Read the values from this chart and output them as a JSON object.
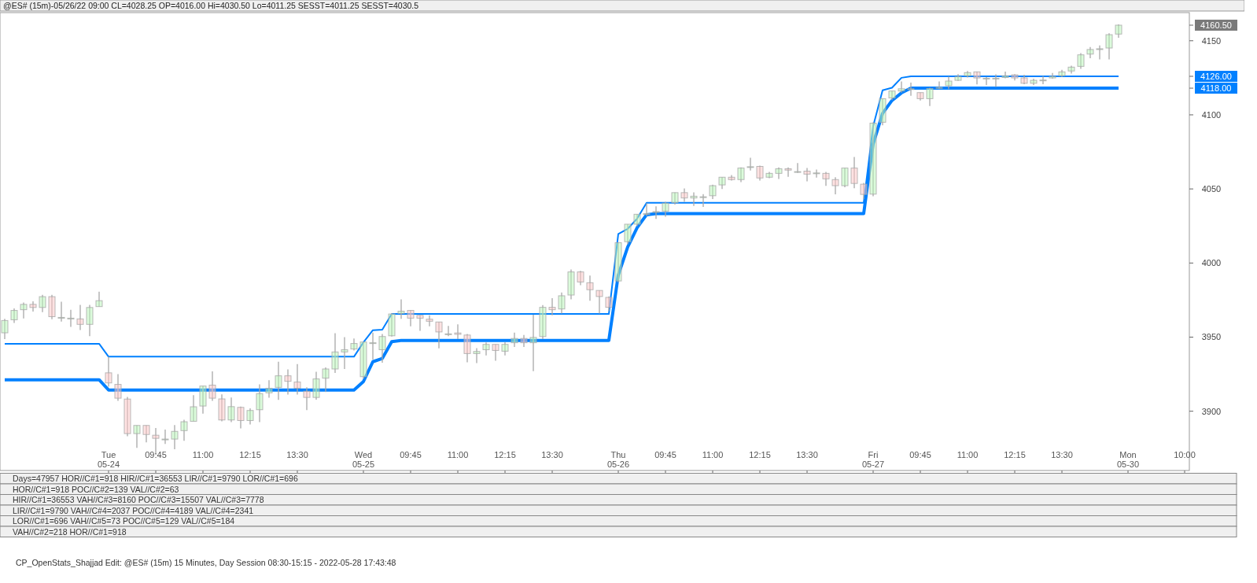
{
  "chart_data": {
    "type": "candlestick",
    "title": "@ES# (15m)-05/26/22 09:00 CL=4028.25 OP=4016.00 Hi=4030.50 Lo=4011.25 SESST=4011.25 SESST=4030.5",
    "categories": [
      null,
      null,
      null,
      null,
      null,
      null,
      null,
      null,
      null,
      null,
      null,
      "Tue 05-24",
      null,
      null,
      null,
      null,
      "09:45",
      null,
      null,
      null,
      null,
      "11:00",
      null,
      null,
      null,
      null,
      "12:15",
      null,
      null,
      null,
      null,
      "13:30",
      null,
      null,
      null,
      null,
      null,
      null,
      "Wed 05-25",
      null,
      null,
      null,
      null,
      "09:45",
      null,
      null,
      null,
      null,
      "11:00",
      null,
      null,
      null,
      null,
      "12:15",
      null,
      null,
      null,
      null,
      "13:30",
      null,
      null,
      null,
      null,
      null,
      null,
      "Thu 05-26",
      null,
      null,
      null,
      null,
      "09:45",
      null,
      null,
      null,
      null,
      "11:00",
      null,
      null,
      null,
      null,
      "12:15",
      null,
      null,
      null,
      null,
      "13:30",
      null,
      null,
      null,
      null,
      null,
      null,
      "Fri 05-27",
      null,
      null,
      null,
      null,
      "09:45",
      null,
      null,
      null,
      null,
      "11:00",
      null,
      null,
      null,
      null,
      "12:15",
      null,
      null,
      null,
      null,
      "13:30",
      null,
      null,
      null,
      null,
      null,
      null,
      "Mon 05-30",
      null,
      null,
      null,
      null,
      null,
      "10:00"
    ],
    "ohlc": [
      [
        3952.9,
        3962.4,
        3948.6,
        3961.2
      ],
      [
        3961.7,
        3969.4,
        3959.5,
        3968.0
      ],
      [
        3968.5,
        3973.3,
        3962.6,
        3972.1
      ],
      [
        3972.1,
        3974.2,
        3967.3,
        3970.0
      ],
      [
        3970.0,
        3978.5,
        3966.8,
        3977.3
      ],
      [
        3977.3,
        3978.5,
        3962.1,
        3963.8
      ],
      [
        3963.3,
        3973.9,
        3960.5,
        3963.3
      ],
      [
        3962.8,
        3968.5,
        3956.9,
        3962.8
      ],
      [
        3962.3,
        3971.8,
        3954.8,
        3958.6
      ],
      [
        3958.6,
        3971.8,
        3950.7,
        3970.0
      ],
      [
        3970.6,
        3980.6,
        3970.6,
        3974.6
      ],
      [
        3925.9,
        3936.8,
        3916.5,
        3919.1
      ],
      [
        3918.1,
        3925.0,
        3907.0,
        3908.8
      ],
      [
        3908.2,
        3909.6,
        3883.1,
        3884.9
      ],
      [
        3884.9,
        3890.4,
        3875.3,
        3890.4
      ],
      [
        3890.4,
        3890.4,
        3879.0,
        3884.3
      ],
      [
        3883.8,
        3888.7,
        3870.7,
        3881.7
      ],
      [
        3881.2,
        3887.6,
        3877.9,
        3881.2
      ],
      [
        3881.2,
        3890.6,
        3874.3,
        3886.4
      ],
      [
        3886.9,
        3894.2,
        3880.0,
        3892.9
      ],
      [
        3893.2,
        3910.8,
        3893.2,
        3903.0
      ],
      [
        3903.5,
        3917.0,
        3898.4,
        3917.0
      ],
      [
        3917.6,
        3926.9,
        3907.0,
        3908.8
      ],
      [
        3908.3,
        3911.4,
        3893.2,
        3894.1
      ],
      [
        3894.1,
        3909.3,
        3892.7,
        3903.1
      ],
      [
        3902.6,
        3903.1,
        3888.4,
        3893.7
      ],
      [
        3893.7,
        3902.0,
        3891.1,
        3900.5
      ],
      [
        3901.0,
        3918.1,
        3892.7,
        3911.9
      ],
      [
        3912.4,
        3920.9,
        3909.1,
        3915.5
      ],
      [
        3916.1,
        3933.4,
        3907.6,
        3923.9
      ],
      [
        3923.9,
        3928.2,
        3911.2,
        3920.2
      ],
      [
        3919.7,
        3931.8,
        3911.2,
        3915.5
      ],
      [
        3913.5,
        3916.1,
        3900.8,
        3909.3
      ],
      [
        3909.3,
        3926.6,
        3907.8,
        3921.8
      ],
      [
        3922.3,
        3929.6,
        3913.0,
        3928.5
      ],
      [
        3928.5,
        3952.6,
        3925.9,
        3940.0
      ],
      [
        3940.0,
        3950.0,
        3928.5,
        3941.5
      ],
      [
        3942.0,
        3949.0,
        3941.0,
        3945.7
      ],
      [
        3923.3,
        3946.7,
        3921.8,
        3946.7
      ],
      [
        3946.2,
        3953.0,
        3934.8,
        3946.2
      ],
      [
        3941.5,
        3952.1,
        3932.8,
        3950.4
      ],
      [
        3950.9,
        3966.0,
        3950.4,
        3965.6
      ],
      [
        3966.0,
        3975.5,
        3962.3,
        3967.5
      ],
      [
        3968.0,
        3968.0,
        3957.3,
        3962.8
      ],
      [
        3964.7,
        3964.7,
        3954.3,
        3962.8
      ],
      [
        3962.1,
        3964.7,
        3957.3,
        3960.7
      ],
      [
        3960.2,
        3960.2,
        3942.4,
        3953.5
      ],
      [
        3952.2,
        3957.6,
        3950.7,
        3952.2
      ],
      [
        3952.8,
        3958.6,
        3948.6,
        3951.9
      ],
      [
        3951.4,
        3952.1,
        3933.0,
        3938.9
      ],
      [
        3938.9,
        3942.6,
        3932.5,
        3940.3
      ],
      [
        3941.5,
        3946.4,
        3937.7,
        3945.1
      ],
      [
        3945.1,
        3945.1,
        3934.1,
        3941.0
      ],
      [
        3940.5,
        3946.5,
        3937.7,
        3945.1
      ],
      [
        3946.2,
        3953.0,
        3943.4,
        3949.1
      ],
      [
        3949.1,
        3951.4,
        3943.4,
        3946.2
      ],
      [
        3946.2,
        3965.1,
        3927.0,
        3949.8
      ],
      [
        3950.4,
        3971.6,
        3948.6,
        3970.1
      ],
      [
        3970.1,
        3976.3,
        3964.7,
        3968.5
      ],
      [
        3969.0,
        3980.1,
        3965.9,
        3977.9
      ],
      [
        3978.4,
        3995.7,
        3975.5,
        3994.0
      ],
      [
        3994.0,
        3994.7,
        3985.0,
        3987.2
      ],
      [
        3986.7,
        3991.6,
        3974.6,
        3982.0
      ],
      [
        3981.5,
        3981.5,
        3965.9,
        3977.4
      ],
      [
        3976.8,
        3977.5,
        3967.7,
        3970.1
      ],
      [
        3987.9,
        4014.0,
        3987.0,
        4013.7
      ],
      [
        4014.4,
        4026.2,
        4012.7,
        4026.2
      ],
      [
        4026.2,
        4032.9,
        4024.8,
        4032.9
      ],
      [
        4033.3,
        4040.4,
        4031.7,
        4033.3
      ],
      [
        4034.7,
        4038.2,
        4029.7,
        4034.7
      ],
      [
        4035.0,
        4041.3,
        4031.2,
        4040.4
      ],
      [
        4040.7,
        4047.5,
        4039.5,
        4047.5
      ],
      [
        4047.5,
        4050.3,
        4041.3,
        4043.9
      ],
      [
        4043.9,
        4047.7,
        4038.5,
        4045.1
      ],
      [
        4044.7,
        4046.5,
        4037.8,
        4044.7
      ],
      [
        4045.4,
        4052.9,
        4043.2,
        4052.2
      ],
      [
        4052.7,
        4057.9,
        4049.9,
        4057.9
      ],
      [
        4057.9,
        4059.4,
        4055.6,
        4056.3
      ],
      [
        4056.3,
        4064.6,
        4054.6,
        4064.1
      ],
      [
        4065.0,
        4071.0,
        4062.4,
        4065.0
      ],
      [
        4065.2,
        4065.8,
        4055.6,
        4057.4
      ],
      [
        4057.9,
        4061.5,
        4057.2,
        4060.5
      ],
      [
        4060.5,
        4064.6,
        4056.7,
        4063.6
      ],
      [
        4063.6,
        4064.6,
        4058.2,
        4062.7
      ],
      [
        4061.7,
        4067.4,
        4060.8,
        4061.7
      ],
      [
        4062.0,
        4064.1,
        4055.1,
        4060.0
      ],
      [
        4060.8,
        4063.1,
        4057.7,
        4060.8
      ],
      [
        4060.5,
        4061.5,
        4052.0,
        4056.8
      ],
      [
        4056.3,
        4057.9,
        4046.3,
        4052.2
      ],
      [
        4052.2,
        4064.1,
        4051.1,
        4064.1
      ],
      [
        4064.1,
        4071.6,
        4050.5,
        4053.7
      ],
      [
        4053.2,
        4054.0,
        4043.0,
        4046.3
      ],
      [
        4046.5,
        4095.0,
        4045.0,
        4094.4
      ],
      [
        4095.0,
        4110.9,
        4093.0,
        4110.9
      ],
      [
        4111.4,
        4116.1,
        4110.0,
        4116.1
      ],
      [
        4116.1,
        4122.5,
        4115.0,
        4117.6
      ],
      [
        4117.6,
        4121.8,
        4112.8,
        4117.6
      ],
      [
        4115.0,
        4115.0,
        4109.7,
        4110.9
      ],
      [
        4110.9,
        4118.3,
        4106.0,
        4117.8
      ],
      [
        4117.9,
        4122.5,
        4117.4,
        4118.5
      ],
      [
        4119.7,
        4125.9,
        4117.4,
        4122.8
      ],
      [
        4123.3,
        4127.5,
        4123.0,
        4125.7
      ],
      [
        4126.4,
        4129.6,
        4125.2,
        4128.5
      ],
      [
        4129.0,
        4129.0,
        4120.6,
        4124.9
      ],
      [
        4124.7,
        4125.6,
        4120.0,
        4124.7
      ],
      [
        4124.7,
        4127.3,
        4118.8,
        4124.7
      ],
      [
        4125.2,
        4129.2,
        4124.7,
        4126.4
      ],
      [
        4127.0,
        4127.5,
        4123.2,
        4124.9
      ],
      [
        4124.9,
        4127.0,
        4120.7,
        4121.3
      ],
      [
        4121.3,
        4124.4,
        4120.0,
        4123.3
      ],
      [
        4123.5,
        4126.1,
        4120.7,
        4123.5
      ],
      [
        4124.9,
        4128.2,
        4124.4,
        4125.9
      ],
      [
        4126.4,
        4130.4,
        4125.6,
        4129.0
      ],
      [
        4129.6,
        4133.2,
        4127.8,
        4132.2
      ],
      [
        4132.7,
        4141.7,
        4131.0,
        4140.5
      ],
      [
        4141.0,
        4145.8,
        4138.2,
        4144.1
      ],
      [
        4144.6,
        4146.9,
        4137.4,
        4144.6
      ],
      [
        4145.1,
        4155.0,
        4137.4,
        4154.1
      ],
      [
        4154.5,
        4161.0,
        4152.0,
        4160.5
      ],
      null,
      null,
      null,
      null,
      null,
      null,
      null
    ],
    "series": [
      {
        "type": "line",
        "color": "#0080ff",
        "values": [
          3945.5,
          3945.5,
          3945.5,
          3945.5,
          3945.5,
          3945.5,
          3945.5,
          3945.5,
          3945.5,
          3945.5,
          3945.5,
          3936.8,
          3936.8,
          3936.8,
          3936.8,
          3936.8,
          3936.8,
          3936.8,
          3936.8,
          3936.8,
          3936.8,
          3936.8,
          3936.8,
          3936.8,
          3936.8,
          3936.8,
          3936.8,
          3936.8,
          3936.8,
          3936.8,
          3936.8,
          3936.8,
          3936.8,
          3936.8,
          3936.8,
          3936.8,
          3936.8,
          3936.8,
          3946.5,
          3954.7,
          3955.0,
          3965.6,
          3965.6,
          3965.6,
          3965.6,
          3965.6,
          3965.6,
          3965.6,
          3965.6,
          3965.6,
          3965.6,
          3965.6,
          3965.6,
          3965.6,
          3965.6,
          3965.6,
          3965.6,
          3965.6,
          3965.6,
          3965.6,
          3965.6,
          3965.6,
          3965.6,
          3965.6,
          3965.6,
          4019.6,
          4023.1,
          4030.0,
          4040.7,
          4040.7,
          4040.7,
          4040.7,
          4040.7,
          4040.7,
          4040.7,
          4040.7,
          4040.7,
          4040.7,
          4040.7,
          4040.7,
          4040.7,
          4040.7,
          4040.7,
          4040.7,
          4040.7,
          4040.7,
          4040.7,
          4040.7,
          4040.7,
          4040.7,
          4040.7,
          4040.7,
          4092.3,
          4116.6,
          4118.3,
          4125.0,
          4126,
          4126,
          4126,
          4126,
          4126,
          4126,
          4126,
          4126,
          4126,
          4126,
          4126,
          4126,
          4126,
          4126,
          4126,
          4126,
          4126,
          4126,
          4126,
          4126,
          4126,
          4126,
          4126,
          null,
          null,
          null,
          null,
          null,
          null,
          null
        ]
      },
      {
        "type": "line",
        "color": "#0080ff",
        "values": [
          3921.2,
          3921.2,
          3921.2,
          3921.2,
          3921.2,
          3921.2,
          3921.2,
          3921.2,
          3921.2,
          3921.2,
          3921.2,
          3914.3,
          3914.3,
          3914.3,
          3914.3,
          3914.3,
          3914.3,
          3914.3,
          3914.3,
          3914.3,
          3914.3,
          3914.3,
          3914.3,
          3914.3,
          3914.3,
          3914.3,
          3914.3,
          3914.3,
          3914.3,
          3914.3,
          3914.3,
          3914.3,
          3914.3,
          3914.3,
          3914.3,
          3914.3,
          3914.3,
          3914.3,
          3920.0,
          3933.4,
          3935.6,
          3946.9,
          3947.8,
          3947.8,
          3947.8,
          3947.8,
          3947.8,
          3947.8,
          3947.8,
          3947.8,
          3947.8,
          3947.8,
          3947.8,
          3947.8,
          3947.8,
          3947.8,
          3947.8,
          3947.8,
          3947.8,
          3947.8,
          3947.8,
          3947.8,
          3947.8,
          3947.8,
          3947.8,
          3991.9,
          4010.9,
          4023.9,
          4032.6,
          4033.3,
          4033.3,
          4033.3,
          4033.3,
          4033.3,
          4033.3,
          4033.3,
          4033.3,
          4033.3,
          4033.3,
          4033.3,
          4033.3,
          4033.3,
          4033.3,
          4033.3,
          4033.3,
          4033.3,
          4033.3,
          4033.3,
          4033.3,
          4033.3,
          4033.3,
          4033.3,
          4080.4,
          4101.0,
          4109.7,
          4114.8,
          4118,
          4118,
          4118,
          4118,
          4118,
          4118,
          4118,
          4118,
          4118,
          4118,
          4118,
          4118,
          4118,
          4118,
          4118,
          4118,
          4118,
          4118,
          4118,
          4118,
          4118,
          4118,
          4118,
          null,
          null,
          null,
          null,
          null,
          null,
          null
        ]
      }
    ],
    "ylim": [
      3860,
      4169
    ],
    "yticks": [
      3900,
      3950,
      4000,
      4050,
      4100,
      4150,
      {
        "value": 4160.5,
        "label": "4160.50"
      },
      {
        "value": 4126,
        "label": "4126.00"
      },
      {
        "value": 4118,
        "label": "4118.00"
      }
    ],
    "annotations": [
      "Days=47957 HOR//C#1=918 HIR//C#1=36553 LIR//C#1=9790 LOR//C#1=696",
      "HOR//C#1=918 POC//C#2=139 VAL//C#2=63",
      "HIR//C#1=36553 VAH//C#3=8160 POC//C#3=15507 VAL//C#3=7778",
      "LIR//C#1=9790 VAH//C#4=2037 POC//C#4=4189 VAL//C#4=2341",
      "LOR//C#1=696 VAH//C#5=73 POC//C#5=129 VAL//C#5=184",
      "VAH//C#2=218 HOR//C#1=918",
      "CP_OpenStats_Shajjad Edit: @ES# (15m) 15 Minutes, Day Session 08:30-15:15 - 2022-05-28 17:43:48"
    ]
  }
}
